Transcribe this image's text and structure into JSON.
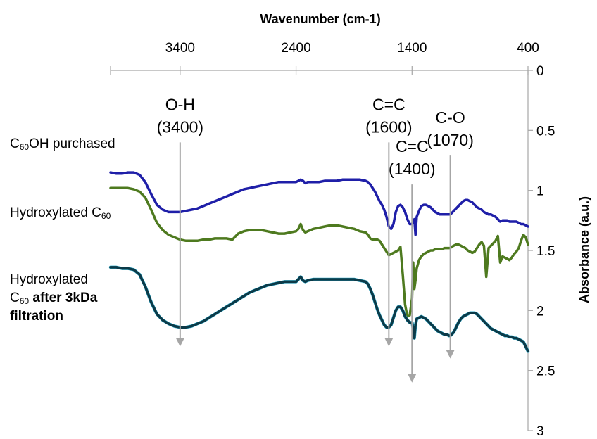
{
  "chart_data": {
    "type": "line",
    "title": "",
    "xlabel": "Wavenumber (cm-1)",
    "ylabel": "Absorbance (a.u.)",
    "x_reversed": true,
    "xlim": [
      4000,
      400
    ],
    "ylim": [
      0,
      3
    ],
    "y_reversed": true,
    "xticks": [
      "3400",
      "2400",
      "1400",
      "400"
    ],
    "yticks": [
      "0",
      "0.5",
      "1",
      "1.5",
      "2",
      "2.5",
      "3"
    ],
    "grid": false,
    "series": [
      {
        "name": "purchased",
        "color": "#1f1fa8",
        "x": [
          4000,
          3950,
          3900,
          3850,
          3800,
          3750,
          3700,
          3650,
          3600,
          3550,
          3500,
          3450,
          3400,
          3350,
          3300,
          3250,
          3200,
          3150,
          3100,
          3050,
          3000,
          2950,
          2900,
          2850,
          2800,
          2750,
          2700,
          2650,
          2600,
          2550,
          2500,
          2450,
          2400,
          2380,
          2360,
          2340,
          2320,
          2300,
          2250,
          2200,
          2150,
          2100,
          2050,
          2000,
          1950,
          1900,
          1850,
          1800,
          1780,
          1760,
          1740,
          1720,
          1700,
          1680,
          1660,
          1640,
          1620,
          1600,
          1580,
          1560,
          1540,
          1520,
          1500,
          1480,
          1460,
          1440,
          1420,
          1400,
          1390,
          1380,
          1370,
          1360,
          1340,
          1320,
          1300,
          1280,
          1260,
          1240,
          1220,
          1200,
          1180,
          1160,
          1140,
          1120,
          1100,
          1080,
          1070,
          1060,
          1040,
          1020,
          1000,
          980,
          960,
          940,
          920,
          900,
          880,
          860,
          840,
          820,
          800,
          780,
          760,
          740,
          720,
          700,
          680,
          660,
          640,
          620,
          600,
          580,
          560,
          540,
          520,
          500,
          480,
          460,
          440,
          420,
          400
        ],
        "values": [
          0.85,
          0.86,
          0.86,
          0.85,
          0.85,
          0.87,
          0.93,
          1.03,
          1.12,
          1.16,
          1.18,
          1.18,
          1.18,
          1.17,
          1.16,
          1.15,
          1.13,
          1.11,
          1.09,
          1.07,
          1.05,
          1.03,
          1.01,
          0.99,
          0.98,
          0.97,
          0.96,
          0.95,
          0.94,
          0.93,
          0.93,
          0.93,
          0.93,
          0.92,
          0.91,
          0.92,
          0.94,
          0.93,
          0.93,
          0.93,
          0.92,
          0.92,
          0.92,
          0.91,
          0.91,
          0.91,
          0.91,
          0.92,
          0.93,
          0.95,
          0.98,
          1.01,
          1.05,
          1.09,
          1.12,
          1.16,
          1.22,
          1.3,
          1.32,
          1.28,
          1.18,
          1.13,
          1.12,
          1.14,
          1.18,
          1.24,
          1.28,
          1.28,
          1.26,
          1.24,
          1.37,
          1.22,
          1.17,
          1.13,
          1.12,
          1.12,
          1.13,
          1.14,
          1.16,
          1.18,
          1.19,
          1.2,
          1.2,
          1.2,
          1.2,
          1.2,
          1.2,
          1.19,
          1.17,
          1.15,
          1.13,
          1.11,
          1.09,
          1.08,
          1.08,
          1.09,
          1.1,
          1.12,
          1.14,
          1.15,
          1.16,
          1.18,
          1.19,
          1.2,
          1.2,
          1.21,
          1.22,
          1.24,
          1.26,
          1.25,
          1.25,
          1.25,
          1.26,
          1.26,
          1.26,
          1.26,
          1.27,
          1.28,
          1.28,
          1.29,
          1.3
        ]
      },
      {
        "name": "hydroxylated",
        "color": "#4e7a1f",
        "x": [
          4000,
          3950,
          3900,
          3850,
          3800,
          3750,
          3700,
          3650,
          3600,
          3550,
          3500,
          3450,
          3400,
          3350,
          3300,
          3250,
          3200,
          3150,
          3100,
          3050,
          3000,
          2950,
          2900,
          2850,
          2800,
          2750,
          2700,
          2650,
          2600,
          2550,
          2500,
          2450,
          2400,
          2380,
          2360,
          2340,
          2320,
          2300,
          2250,
          2200,
          2150,
          2100,
          2050,
          2000,
          1950,
          1900,
          1850,
          1800,
          1780,
          1760,
          1740,
          1720,
          1700,
          1680,
          1660,
          1640,
          1620,
          1600,
          1580,
          1560,
          1540,
          1520,
          1500,
          1480,
          1460,
          1440,
          1420,
          1400,
          1390,
          1380,
          1370,
          1360,
          1340,
          1320,
          1300,
          1280,
          1260,
          1240,
          1220,
          1200,
          1180,
          1160,
          1140,
          1120,
          1100,
          1080,
          1070,
          1060,
          1040,
          1020,
          1000,
          980,
          960,
          940,
          920,
          900,
          880,
          860,
          840,
          820,
          800,
          780,
          760,
          740,
          720,
          700,
          680,
          660,
          640,
          620,
          600,
          580,
          560,
          540,
          520,
          500,
          480,
          460,
          440,
          420,
          400
        ],
        "values": [
          0.98,
          0.98,
          0.98,
          0.98,
          0.99,
          1.01,
          1.06,
          1.16,
          1.27,
          1.33,
          1.37,
          1.39,
          1.41,
          1.42,
          1.42,
          1.42,
          1.41,
          1.41,
          1.4,
          1.4,
          1.4,
          1.41,
          1.36,
          1.34,
          1.33,
          1.33,
          1.33,
          1.34,
          1.35,
          1.36,
          1.36,
          1.35,
          1.34,
          1.32,
          1.28,
          1.33,
          1.35,
          1.34,
          1.32,
          1.31,
          1.3,
          1.29,
          1.29,
          1.3,
          1.31,
          1.32,
          1.34,
          1.35,
          1.37,
          1.4,
          1.41,
          1.41,
          1.41,
          1.42,
          1.45,
          1.48,
          1.51,
          1.54,
          1.53,
          1.52,
          1.51,
          1.5,
          1.47,
          1.7,
          1.95,
          2.05,
          2.04,
          1.9,
          1.6,
          1.82,
          1.75,
          1.65,
          1.58,
          1.55,
          1.53,
          1.52,
          1.51,
          1.5,
          1.5,
          1.49,
          1.49,
          1.49,
          1.49,
          1.48,
          1.48,
          1.48,
          1.48,
          1.47,
          1.46,
          1.45,
          1.45,
          1.46,
          1.47,
          1.48,
          1.5,
          1.51,
          1.52,
          1.51,
          1.48,
          1.45,
          1.43,
          1.46,
          1.72,
          1.48,
          1.46,
          1.44,
          1.42,
          1.38,
          1.6,
          1.55,
          1.56,
          1.57,
          1.58,
          1.56,
          1.53,
          1.51,
          1.48,
          1.42,
          1.37,
          1.39,
          1.45
        ]
      },
      {
        "name": "after 3kDa filtration",
        "color": "#0c3a48",
        "x": [
          4000,
          3950,
          3900,
          3850,
          3800,
          3750,
          3700,
          3650,
          3600,
          3550,
          3500,
          3450,
          3400,
          3350,
          3300,
          3250,
          3200,
          3150,
          3100,
          3050,
          3000,
          2950,
          2900,
          2850,
          2800,
          2750,
          2700,
          2650,
          2600,
          2550,
          2500,
          2450,
          2400,
          2380,
          2360,
          2340,
          2320,
          2300,
          2250,
          2200,
          2150,
          2100,
          2050,
          2000,
          1950,
          1900,
          1850,
          1800,
          1780,
          1760,
          1740,
          1720,
          1700,
          1680,
          1660,
          1640,
          1620,
          1600,
          1580,
          1560,
          1540,
          1520,
          1500,
          1480,
          1460,
          1440,
          1420,
          1400,
          1390,
          1380,
          1370,
          1360,
          1340,
          1320,
          1300,
          1280,
          1260,
          1240,
          1220,
          1200,
          1180,
          1160,
          1140,
          1120,
          1100,
          1080,
          1070,
          1060,
          1040,
          1020,
          1000,
          980,
          960,
          940,
          920,
          900,
          880,
          860,
          840,
          820,
          800,
          780,
          760,
          740,
          720,
          700,
          680,
          660,
          640,
          620,
          600,
          580,
          560,
          540,
          520,
          500,
          480,
          460,
          440,
          420,
          400
        ],
        "values": [
          1.64,
          1.64,
          1.65,
          1.65,
          1.66,
          1.7,
          1.8,
          1.93,
          2.03,
          2.08,
          2.11,
          2.13,
          2.14,
          2.14,
          2.13,
          2.11,
          2.09,
          2.06,
          2.03,
          2.0,
          1.97,
          1.94,
          1.91,
          1.88,
          1.85,
          1.83,
          1.81,
          1.79,
          1.78,
          1.77,
          1.76,
          1.76,
          1.76,
          1.74,
          1.72,
          1.75,
          1.76,
          1.75,
          1.74,
          1.74,
          1.74,
          1.74,
          1.74,
          1.74,
          1.74,
          1.74,
          1.75,
          1.76,
          1.78,
          1.82,
          1.87,
          1.93,
          1.99,
          2.04,
          2.08,
          2.12,
          2.14,
          2.14,
          2.12,
          2.06,
          2.0,
          1.97,
          1.97,
          2.0,
          2.05,
          2.08,
          2.1,
          2.1,
          2.15,
          2.23,
          2.12,
          2.07,
          2.06,
          2.05,
          2.06,
          2.07,
          2.09,
          2.11,
          2.13,
          2.15,
          2.17,
          2.18,
          2.19,
          2.2,
          2.2,
          2.21,
          2.21,
          2.2,
          2.18,
          2.14,
          2.1,
          2.07,
          2.05,
          2.04,
          2.03,
          2.02,
          2.02,
          2.02,
          2.03,
          2.05,
          2.07,
          2.09,
          2.11,
          2.13,
          2.15,
          2.16,
          2.17,
          2.18,
          2.19,
          2.2,
          2.21,
          2.21,
          2.22,
          2.22,
          2.23,
          2.23,
          2.24,
          2.25,
          2.26,
          2.3,
          2.34
        ]
      }
    ],
    "annotations": [
      {
        "line1": "O-H",
        "line2": "(3400)",
        "x": 3400,
        "y_start": 0.6,
        "y_end": 2.3
      },
      {
        "line1": "C=C",
        "line2": "(1600)",
        "x": 1600,
        "y_start": 0.6,
        "y_end": 2.3
      },
      {
        "line1": "C=C",
        "line2": "(1400)",
        "x": 1400,
        "y_start": 0.95,
        "y_end": 2.6
      },
      {
        "line1": "C-O",
        "line2": "(1070)",
        "x": 1070,
        "y_start": 0.71,
        "y_end": 2.4
      }
    ]
  },
  "labels": {
    "purchased_main": "C",
    "purchased_sub": "60",
    "purchased_tail": "OH purchased",
    "hydroxylated_main": "Hydroxylated C",
    "hydroxylated_sub": "60",
    "filtered_line1": "Hydroxylated",
    "filtered_main": "C",
    "filtered_sub": "60",
    "filtered_bold": " after 3kDa",
    "filtered_line3": "filtration"
  }
}
